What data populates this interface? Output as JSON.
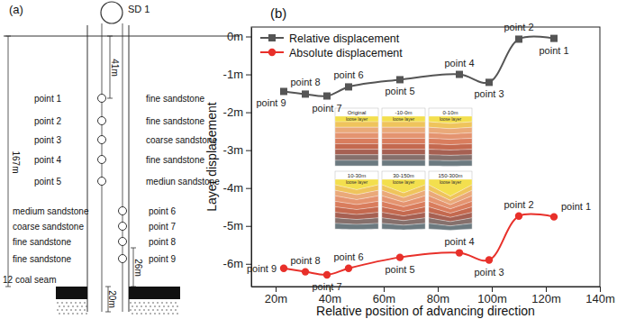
{
  "chart_data": {
    "type": "line",
    "title": "(b)",
    "x_label": "Relative position of advancing direction",
    "y_label": "Layer displacement",
    "x": [
      23,
      31,
      39,
      47,
      66,
      88,
      99,
      110,
      123
    ],
    "series": [
      {
        "name": "Relative displacement",
        "color": "#555555",
        "marker": "square",
        "line_style": "solid",
        "values": [
          -1.45,
          -1.52,
          -1.57,
          -1.33,
          -1.14,
          -1.0,
          -1.21,
          -0.07,
          -0.05
        ],
        "point_labels": [
          "point 9",
          "point 8",
          "point 7",
          "point 6",
          "point 5",
          "point 4",
          "point 3",
          "point 2",
          "point 1"
        ]
      },
      {
        "name": "Absolute displacement",
        "color": "#e8302a",
        "marker": "circle",
        "line_style": "solid",
        "values": [
          -6.12,
          -6.21,
          -6.29,
          -6.12,
          -5.83,
          -5.71,
          -5.9,
          -4.74,
          -4.76
        ],
        "point_labels": [
          "point 9",
          "point 8",
          "point 7",
          "point 6",
          "point 5",
          "point 4",
          "point 3",
          "point 2",
          "point 1"
        ]
      }
    ],
    "xlim": [
      11,
      140
    ],
    "xticks": [
      {
        "value": 20,
        "label": "20m"
      },
      {
        "value": 40,
        "label": "40m"
      },
      {
        "value": 60,
        "label": "60m"
      },
      {
        "value": 80,
        "label": "80m"
      },
      {
        "value": 100,
        "label": "100m"
      },
      {
        "value": 120,
        "label": "120m"
      },
      {
        "value": 140,
        "label": "140m"
      }
    ],
    "ylim": [
      -6.6,
      0.25
    ],
    "yticks": [
      {
        "value": 0,
        "label": "0m"
      },
      {
        "value": -1,
        "label": "-1m"
      },
      {
        "value": -2,
        "label": "-2m"
      },
      {
        "value": -3,
        "label": "-3m"
      },
      {
        "value": -4,
        "label": "-4m"
      },
      {
        "value": -5,
        "label": "-5m"
      },
      {
        "value": -6,
        "label": "-6m"
      }
    ],
    "grid": false,
    "legend": "upper left",
    "inset": {
      "panels": [
        {
          "title": "Original",
          "layer_label": "loose layer"
        },
        {
          "title": "-10-0m",
          "layer_label": "loose layer"
        },
        {
          "title": "0-10m",
          "layer_label": "loose layer"
        },
        {
          "title": "10-30m",
          "layer_label": "loose layer"
        },
        {
          "title": "30-150m",
          "layer_label": "loose layer"
        },
        {
          "title": "150-300m",
          "layer_label": "loose layer"
        }
      ]
    }
  },
  "diagram": {
    "label": "(a)",
    "device": "SD 1",
    "total_depth": "167m",
    "depth_to_point1": "41m",
    "point9_to_seam": "26m",
    "seam_gap": "20m",
    "coal_seam": "12 coal seam",
    "points": [
      {
        "label": "point 1",
        "stratum": "fine sandstone"
      },
      {
        "label": "point 2",
        "stratum": "fine sandstone"
      },
      {
        "label": "point 3",
        "stratum": "coarse sandstone"
      },
      {
        "label": "point 4",
        "stratum": "fine sandstone"
      },
      {
        "label": "point 5",
        "stratum": "mediun sandstone"
      },
      {
        "label": "point 6",
        "stratum": "medium sandstone"
      },
      {
        "label": "point 7",
        "stratum": "coarse sandstone"
      },
      {
        "label": "point 8",
        "stratum": "fine sandstone"
      },
      {
        "label": "point 9",
        "stratum": "fine sandstone"
      }
    ]
  }
}
